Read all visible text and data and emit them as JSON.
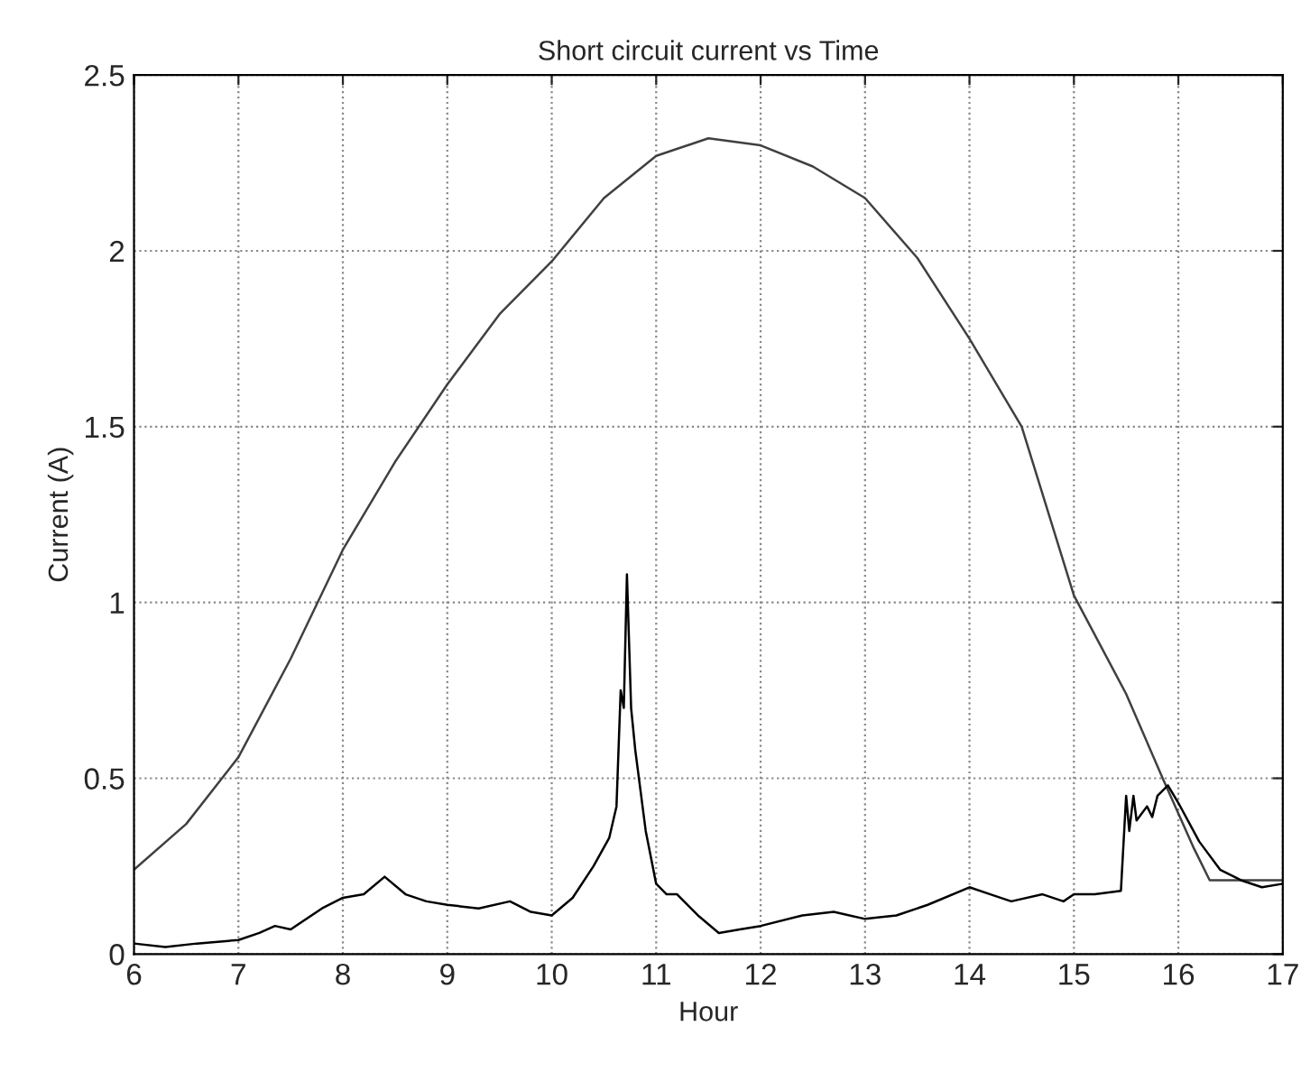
{
  "chart_data": {
    "type": "line",
    "title": "Short circuit current vs Time",
    "xlabel": "Hour",
    "ylabel": "Current (A)",
    "xlim": [
      6,
      17
    ],
    "xticks": [
      6,
      7,
      8,
      9,
      10,
      11,
      12,
      13,
      14,
      15,
      16,
      17
    ],
    "ylim": [
      0,
      2.5
    ],
    "yticks": [
      0,
      0.5,
      1,
      1.5,
      2,
      2.5
    ],
    "grid": true,
    "line_style": "solid",
    "marker": "none",
    "series": [
      {
        "color": "#404040",
        "x": [
          6,
          6.5,
          7,
          7.5,
          8,
          8.5,
          9,
          9.5,
          10,
          10.5,
          11,
          11.5,
          12,
          12.5,
          13,
          13.5,
          14,
          14.5,
          15,
          15.5,
          15.85,
          16,
          16.15,
          16.3,
          16.6,
          17
        ],
        "values": [
          0.24,
          0.37,
          0.56,
          0.84,
          1.15,
          1.4,
          1.62,
          1.82,
          1.97,
          2.15,
          2.27,
          2.32,
          2.3,
          2.24,
          2.15,
          1.98,
          1.75,
          1.5,
          1.02,
          0.74,
          0.5,
          0.4,
          0.3,
          0.21,
          0.21,
          0.21
        ]
      },
      {
        "color": "#000000",
        "x": [
          6,
          6.3,
          6.6,
          7,
          7.2,
          7.35,
          7.5,
          7.8,
          8,
          8.2,
          8.4,
          8.6,
          8.8,
          9,
          9.3,
          9.6,
          9.8,
          10,
          10.2,
          10.4,
          10.55,
          10.62,
          10.66,
          10.69,
          10.72,
          10.76,
          10.8,
          10.9,
          11,
          11.1,
          11.2,
          11.4,
          11.6,
          11.8,
          12,
          12.4,
          12.7,
          13,
          13.3,
          13.6,
          14,
          14.2,
          14.4,
          14.7,
          14.9,
          15,
          15.2,
          15.45,
          15.5,
          15.53,
          15.57,
          15.6,
          15.7,
          15.75,
          15.8,
          15.9,
          16,
          16.2,
          16.4,
          16.6,
          16.8,
          17
        ],
        "values": [
          0.03,
          0.02,
          0.03,
          0.04,
          0.06,
          0.08,
          0.07,
          0.13,
          0.16,
          0.17,
          0.22,
          0.17,
          0.15,
          0.14,
          0.13,
          0.15,
          0.12,
          0.11,
          0.16,
          0.25,
          0.33,
          0.42,
          0.75,
          0.7,
          1.08,
          0.7,
          0.58,
          0.35,
          0.2,
          0.17,
          0.17,
          0.11,
          0.06,
          0.07,
          0.08,
          0.11,
          0.12,
          0.1,
          0.11,
          0.14,
          0.19,
          0.17,
          0.15,
          0.17,
          0.15,
          0.17,
          0.17,
          0.18,
          0.45,
          0.35,
          0.45,
          0.38,
          0.42,
          0.39,
          0.45,
          0.48,
          0.43,
          0.32,
          0.24,
          0.21,
          0.19,
          0.2
        ]
      }
    ]
  }
}
